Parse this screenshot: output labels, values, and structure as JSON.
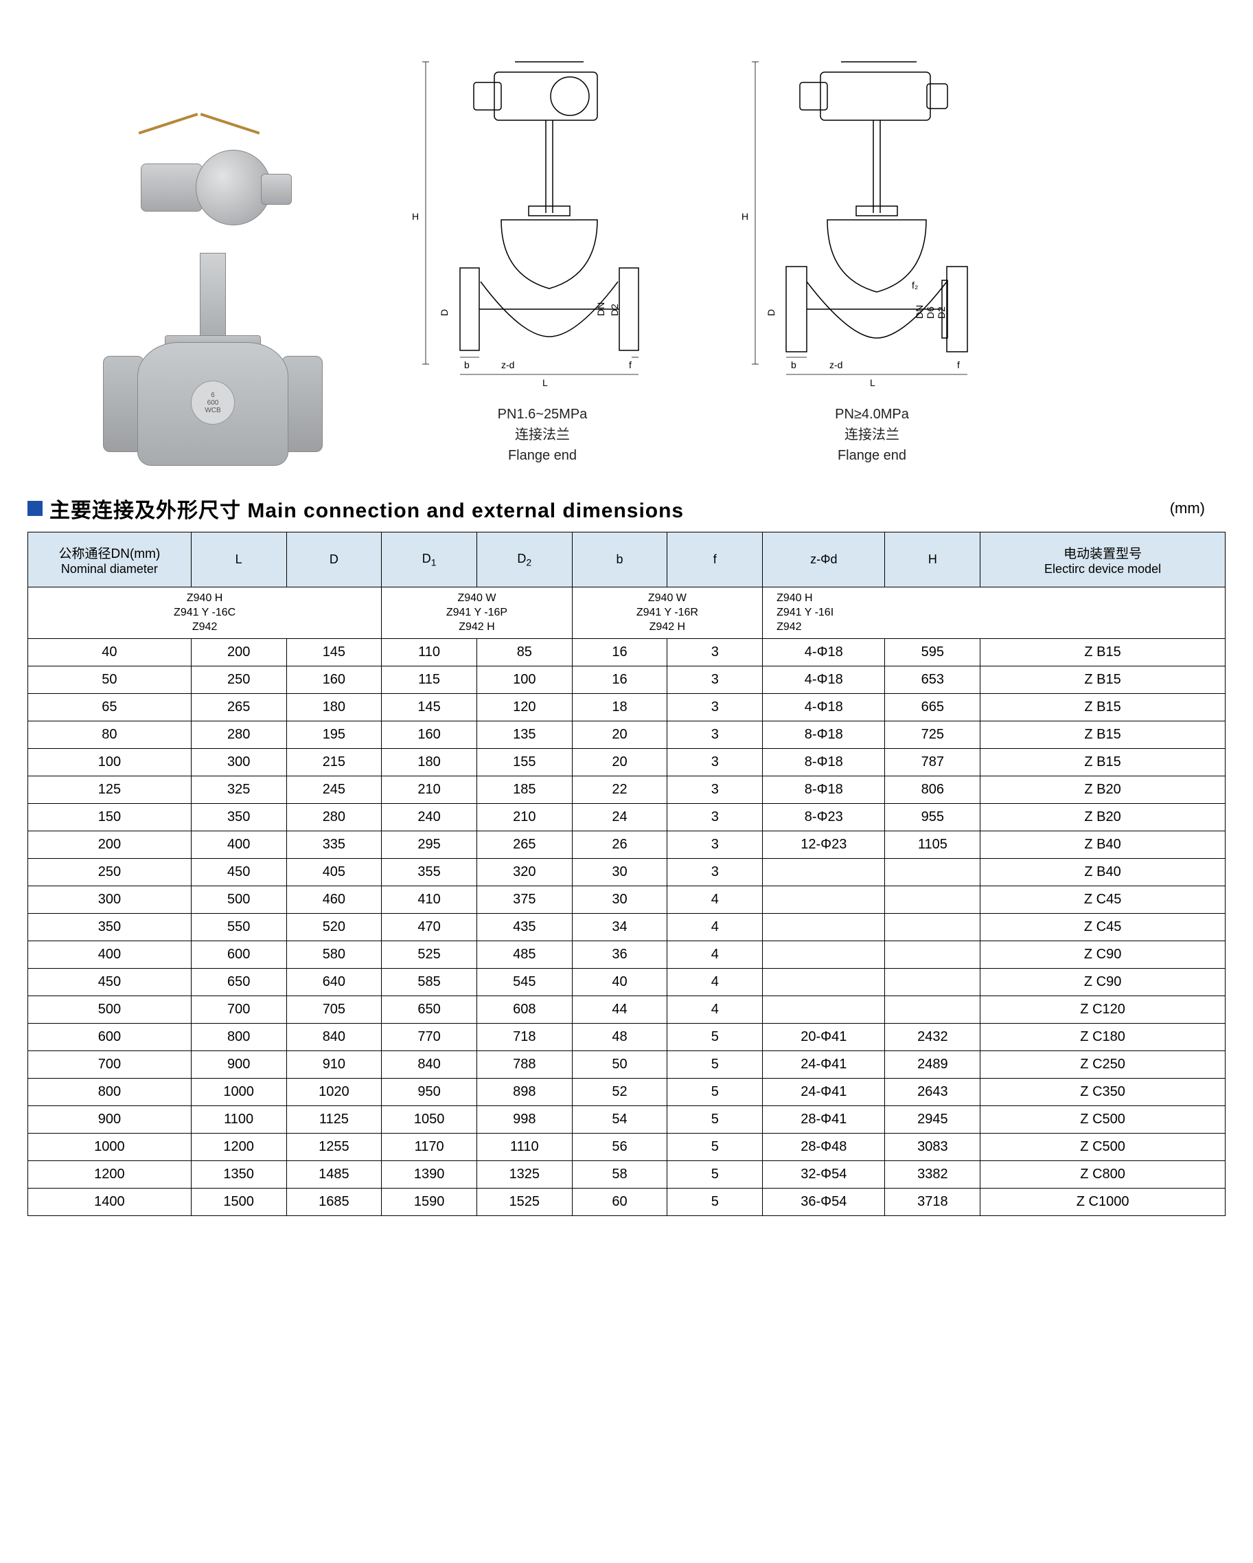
{
  "diagrams": {
    "a": {
      "title": "PN1.6~25MPa",
      "sub_zh": "连接法兰",
      "sub_en": "Flange end",
      "dims": [
        "H",
        "D",
        "DN",
        "D2",
        "b",
        "L",
        "f",
        "z-d"
      ]
    },
    "b": {
      "title": "PN≥4.0MPa",
      "sub_zh": "连接法兰",
      "sub_en": "Flange end",
      "dims": [
        "H",
        "D",
        "DN",
        "D6",
        "D2",
        "b",
        "L",
        "f",
        "z-d",
        "f2"
      ]
    }
  },
  "photo_label": {
    "l1": "6",
    "l2": "600",
    "l3": "WCB"
  },
  "section": {
    "title_zh": "主要连接及外形尺寸",
    "title_en": "Main connection and external dimensions",
    "unit": "(mm)"
  },
  "table": {
    "headers": [
      {
        "zh": "公称通径DN(mm)",
        "en": "Nominal diameter"
      },
      {
        "zh": "",
        "en": "L"
      },
      {
        "zh": "",
        "en": "D"
      },
      {
        "zh": "",
        "en": "D₁"
      },
      {
        "zh": "",
        "en": "D₂"
      },
      {
        "zh": "",
        "en": "b"
      },
      {
        "zh": "",
        "en": "f"
      },
      {
        "zh": "",
        "en": "z-Φd"
      },
      {
        "zh": "",
        "en": "H"
      },
      {
        "zh": "电动装置型号",
        "en": "Electirc device model"
      }
    ],
    "model_codes": {
      "g1": {
        "lines": [
          "Z940 H",
          "Z941 Y -16C",
          "Z942"
        ]
      },
      "g2": {
        "lines": [
          "Z940 W",
          "Z941 Y -16P",
          "Z942 H"
        ]
      },
      "g3": {
        "lines": [
          "Z940 W",
          "Z941 Y -16R",
          "Z942 H"
        ]
      },
      "g4": {
        "lines": [
          "Z940 H",
          "Z941 Y -16I",
          "Z942"
        ]
      }
    },
    "rows": [
      {
        "dn": "40",
        "L": "200",
        "D": "145",
        "D1": "110",
        "D2": "85",
        "b": "16",
        "f": "3",
        "zd": "4-Φ18",
        "H": "595",
        "model": "Z B15"
      },
      {
        "dn": "50",
        "L": "250",
        "D": "160",
        "D1": "115",
        "D2": "100",
        "b": "16",
        "f": "3",
        "zd": "4-Φ18",
        "H": "653",
        "model": "Z B15"
      },
      {
        "dn": "65",
        "L": "265",
        "D": "180",
        "D1": "145",
        "D2": "120",
        "b": "18",
        "f": "3",
        "zd": "4-Φ18",
        "H": "665",
        "model": "Z B15"
      },
      {
        "dn": "80",
        "L": "280",
        "D": "195",
        "D1": "160",
        "D2": "135",
        "b": "20",
        "f": "3",
        "zd": "8-Φ18",
        "H": "725",
        "model": "Z B15"
      },
      {
        "dn": "100",
        "L": "300",
        "D": "215",
        "D1": "180",
        "D2": "155",
        "b": "20",
        "f": "3",
        "zd": "8-Φ18",
        "H": "787",
        "model": "Z B15"
      },
      {
        "dn": "125",
        "L": "325",
        "D": "245",
        "D1": "210",
        "D2": "185",
        "b": "22",
        "f": "3",
        "zd": "8-Φ18",
        "H": "806",
        "model": "Z B20"
      },
      {
        "dn": "150",
        "L": "350",
        "D": "280",
        "D1": "240",
        "D2": "210",
        "b": "24",
        "f": "3",
        "zd": "8-Φ23",
        "H": "955",
        "model": "Z B20"
      },
      {
        "dn": "200",
        "L": "400",
        "D": "335",
        "D1": "295",
        "D2": "265",
        "b": "26",
        "f": "3",
        "zd": "12-Φ23",
        "H": "1105",
        "model": "Z B40"
      },
      {
        "dn": "250",
        "L": "450",
        "D": "405",
        "D1": "355",
        "D2": "320",
        "b": "30",
        "f": "3",
        "zd": "",
        "H": "",
        "model": "Z B40"
      },
      {
        "dn": "300",
        "L": "500",
        "D": "460",
        "D1": "410",
        "D2": "375",
        "b": "30",
        "f": "4",
        "zd": "",
        "H": "",
        "model": "Z C45"
      },
      {
        "dn": "350",
        "L": "550",
        "D": "520",
        "D1": "470",
        "D2": "435",
        "b": "34",
        "f": "4",
        "zd": "",
        "H": "",
        "model": "Z C45"
      },
      {
        "dn": "400",
        "L": "600",
        "D": "580",
        "D1": "525",
        "D2": "485",
        "b": "36",
        "f": "4",
        "zd": "",
        "H": "",
        "model": "Z C90"
      },
      {
        "dn": "450",
        "L": "650",
        "D": "640",
        "D1": "585",
        "D2": "545",
        "b": "40",
        "f": "4",
        "zd": "",
        "H": "",
        "model": "Z C90"
      },
      {
        "dn": "500",
        "L": "700",
        "D": "705",
        "D1": "650",
        "D2": "608",
        "b": "44",
        "f": "4",
        "zd": "",
        "H": "",
        "model": "Z C120"
      },
      {
        "dn": "600",
        "L": "800",
        "D": "840",
        "D1": "770",
        "D2": "718",
        "b": "48",
        "f": "5",
        "zd": "20-Φ41",
        "H": "2432",
        "model": "Z C180"
      },
      {
        "dn": "700",
        "L": "900",
        "D": "910",
        "D1": "840",
        "D2": "788",
        "b": "50",
        "f": "5",
        "zd": "24-Φ41",
        "H": "2489",
        "model": "Z C250"
      },
      {
        "dn": "800",
        "L": "1000",
        "D": "1020",
        "D1": "950",
        "D2": "898",
        "b": "52",
        "f": "5",
        "zd": "24-Φ41",
        "H": "2643",
        "model": "Z C350"
      },
      {
        "dn": "900",
        "L": "1100",
        "D": "1125",
        "D1": "1050",
        "D2": "998",
        "b": "54",
        "f": "5",
        "zd": "28-Φ41",
        "H": "2945",
        "model": "Z C500"
      },
      {
        "dn": "1000",
        "L": "1200",
        "D": "1255",
        "D1": "1170",
        "D2": "1110",
        "b": "56",
        "f": "5",
        "zd": "28-Φ48",
        "H": "3083",
        "model": "Z C500"
      },
      {
        "dn": "1200",
        "L": "1350",
        "D": "1485",
        "D1": "1390",
        "D2": "1325",
        "b": "58",
        "f": "5",
        "zd": "32-Φ54",
        "H": "3382",
        "model": "Z C800"
      },
      {
        "dn": "1400",
        "L": "1500",
        "D": "1685",
        "D1": "1590",
        "D2": "1525",
        "b": "60",
        "f": "5",
        "zd": "36-Φ54",
        "H": "3718",
        "model": "Z C1000"
      }
    ]
  },
  "style": {
    "header_bg": "#d7e6f0",
    "accent": "#1b4fa8",
    "border": "#000000",
    "font_body": 20,
    "font_title": 30
  }
}
